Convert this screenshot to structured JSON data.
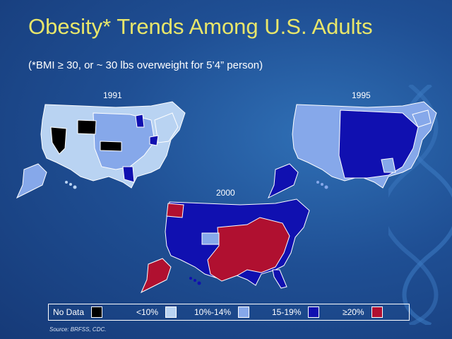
{
  "slide": {
    "title": "Obesity* Trends Among U.S. Adults",
    "subtitle": "(*BMI ≥ 30, or ~ 30 lbs overweight for 5’4” person)",
    "source": "Source: BRFSS, CDC."
  },
  "maps": [
    {
      "year": "1991"
    },
    {
      "year": "1995"
    },
    {
      "year": "2000"
    }
  ],
  "legend": [
    {
      "label": "No Data",
      "color": "#000000"
    },
    {
      "label": "<10%",
      "color": "#b9d3f2"
    },
    {
      "label": "10%-14%",
      "color": "#86a8ea"
    },
    {
      "label": "15-19%",
      "color": "#1010b0"
    },
    {
      "label": "≥20%",
      "color": "#b01030"
    }
  ],
  "colors": {
    "nodata": "#000000",
    "lt10": "#b9d3f2",
    "r10_14": "#86a8ea",
    "r15_19": "#1010b0",
    "ge20": "#b01030",
    "title": "#e8e66a"
  }
}
